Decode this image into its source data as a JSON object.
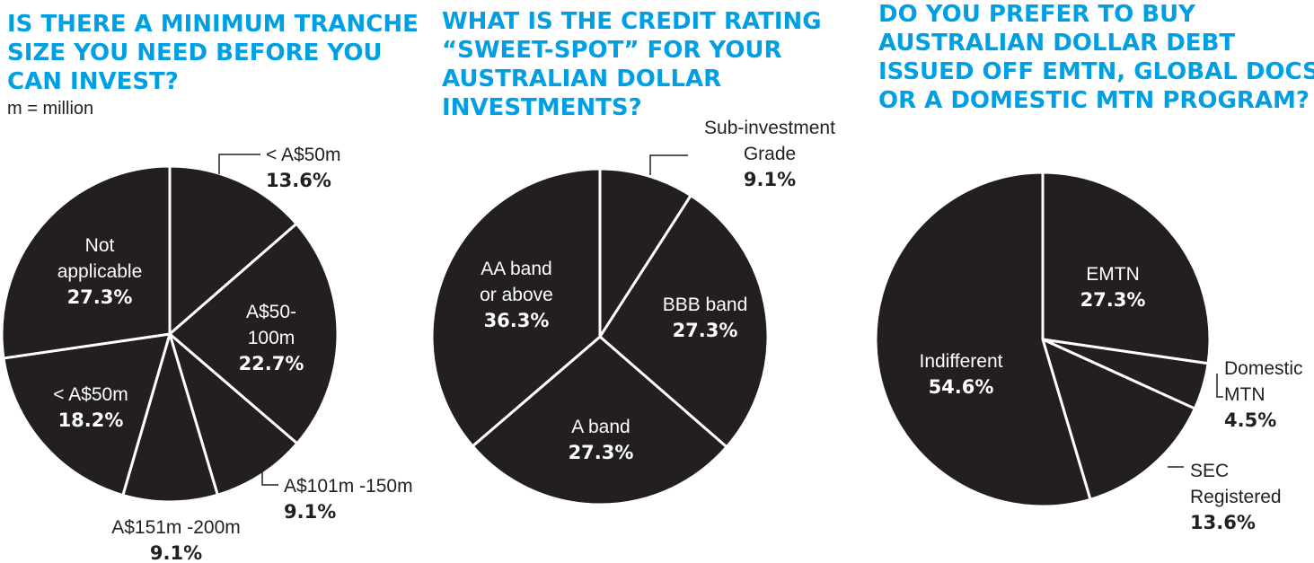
{
  "colors": {
    "question": "#009fe3",
    "slice": "#231f20",
    "separator": "#ffffff",
    "text_inside": "#ffffff",
    "text_outside": "#231f20"
  },
  "chart_data": [
    {
      "type": "pie",
      "title_lines": [
        "IS THERE A MINIMUM TRANCHE",
        "SIZE YOU NEED BEFORE YOU",
        "CAN INVEST?"
      ],
      "note": "m = million",
      "slices": [
        {
          "label_lines": [
            "< A$50m"
          ],
          "pct_label": "13.6%",
          "value": 13.6,
          "label_position": "outside"
        },
        {
          "label_lines": [
            "A$50-",
            "100m"
          ],
          "pct_label": "22.7%",
          "value": 22.7,
          "label_position": "inside"
        },
        {
          "label_lines": [
            "A$101m -150m"
          ],
          "pct_label": "9.1%",
          "value": 9.1,
          "label_position": "outside"
        },
        {
          "label_lines": [
            "A$151m -200m"
          ],
          "pct_label": "9.1%",
          "value": 9.1,
          "label_position": "outside"
        },
        {
          "label_lines": [
            "< A$50m"
          ],
          "pct_label": "18.2%",
          "value": 18.2,
          "label_position": "inside"
        },
        {
          "label_lines": [
            "Not",
            "applicable"
          ],
          "pct_label": "27.3%",
          "value": 27.3,
          "label_position": "inside"
        }
      ]
    },
    {
      "type": "pie",
      "title_lines": [
        "WHAT IS THE CREDIT RATING",
        "“SWEET-SPOT” FOR YOUR",
        "AUSTRALIAN DOLLAR",
        "INVESTMENTS?"
      ],
      "slices": [
        {
          "label_lines": [
            "Sub-investment",
            "Grade"
          ],
          "pct_label": "9.1%",
          "value": 9.1,
          "label_position": "outside"
        },
        {
          "label_lines": [
            "BBB band"
          ],
          "pct_label": "27.3%",
          "value": 27.3,
          "label_position": "inside"
        },
        {
          "label_lines": [
            "A band"
          ],
          "pct_label": "27.3%",
          "value": 27.3,
          "label_position": "inside"
        },
        {
          "label_lines": [
            "AA band",
            "or above"
          ],
          "pct_label": "36.3%",
          "value": 36.3,
          "label_position": "inside"
        }
      ]
    },
    {
      "type": "pie",
      "title_lines": [
        "DO YOU PREFER TO BUY",
        "AUSTRALIAN DOLLAR DEBT",
        "ISSUED OFF EMTN, GLOBAL DOCS",
        "OR A DOMESTIC MTN PROGRAM?"
      ],
      "slices": [
        {
          "label_lines": [
            "EMTN"
          ],
          "pct_label": "27.3%",
          "value": 27.3,
          "label_position": "inside"
        },
        {
          "label_lines": [
            "Domestic",
            "MTN"
          ],
          "pct_label": "4.5%",
          "value": 4.5,
          "label_position": "outside"
        },
        {
          "label_lines": [
            "SEC",
            "Registered"
          ],
          "pct_label": "13.6%",
          "value": 13.6,
          "label_position": "outside"
        },
        {
          "label_lines": [
            "Indifferent"
          ],
          "pct_label": "54.6%",
          "value": 54.6,
          "label_position": "inside"
        }
      ]
    }
  ]
}
